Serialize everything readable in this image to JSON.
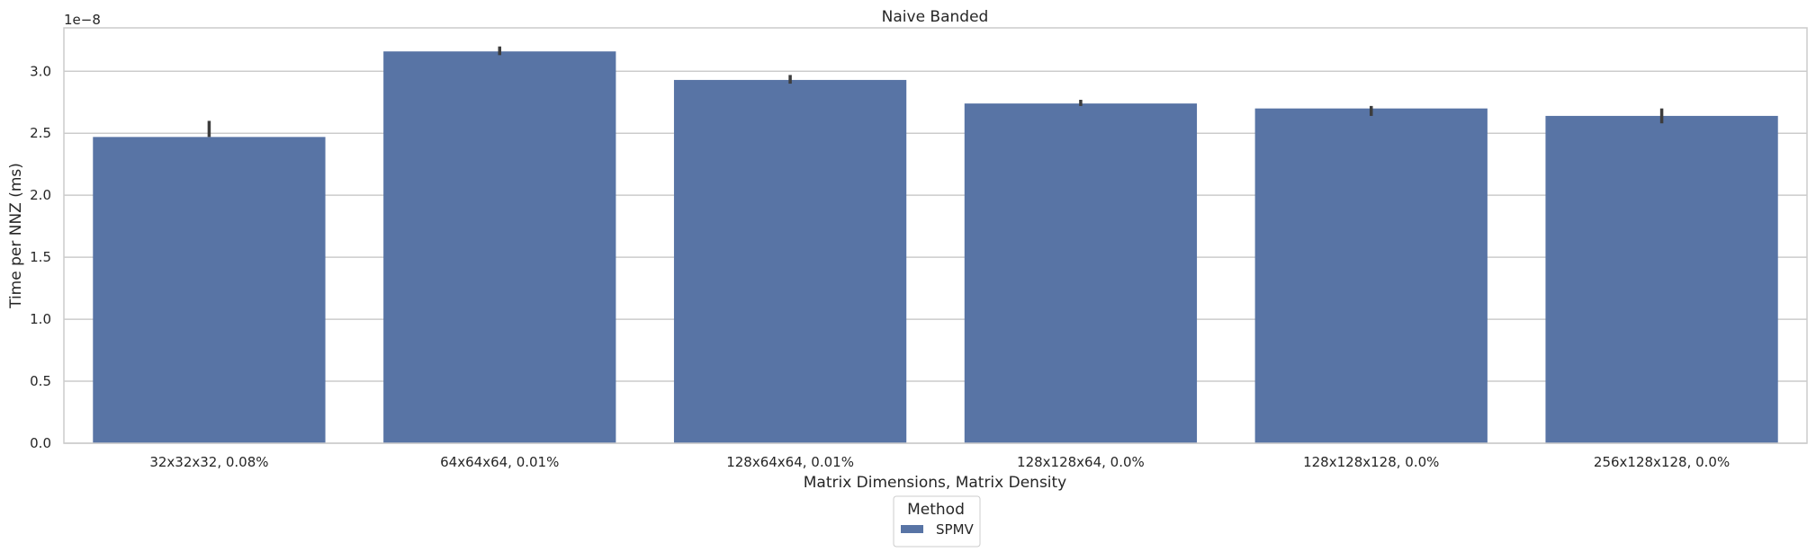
{
  "chart_data": {
    "type": "bar",
    "title": "Naive Banded",
    "xlabel": "Matrix Dimensions, Matrix Density",
    "ylabel": "Time per NNZ (ms)",
    "y_offset_label": "1e−8",
    "y_scale": 1e-08,
    "categories": [
      "32x32x32, 0.08%",
      "64x64x64, 0.01%",
      "128x64x64, 0.01%",
      "128x128x64, 0.0%",
      "128x128x128, 0.0%",
      "256x128x128, 0.0%"
    ],
    "series": [
      {
        "name": "SPMV",
        "color": "#5874a5",
        "values": [
          2.47e-08,
          3.16e-08,
          2.93e-08,
          2.74e-08,
          2.7e-08,
          2.64e-08
        ],
        "error_low": [
          2.47e-08,
          3.13e-08,
          2.9e-08,
          2.72e-08,
          2.64e-08,
          2.58e-08
        ],
        "error_high": [
          2.6e-08,
          3.2e-08,
          2.97e-08,
          2.77e-08,
          2.72e-08,
          2.7e-08
        ]
      }
    ],
    "ylim": [
      0,
      3.35e-08
    ],
    "yticks": [
      0.0,
      0.5,
      1.0,
      1.5,
      2.0,
      2.5,
      3.0
    ],
    "ytick_labels": [
      "0.0",
      "0.5",
      "1.0",
      "1.5",
      "2.0",
      "2.5",
      "3.0"
    ],
    "grid": "horizontal",
    "legend": {
      "title": "Method",
      "placement": "bottom-center",
      "entries": [
        "SPMV"
      ]
    }
  }
}
